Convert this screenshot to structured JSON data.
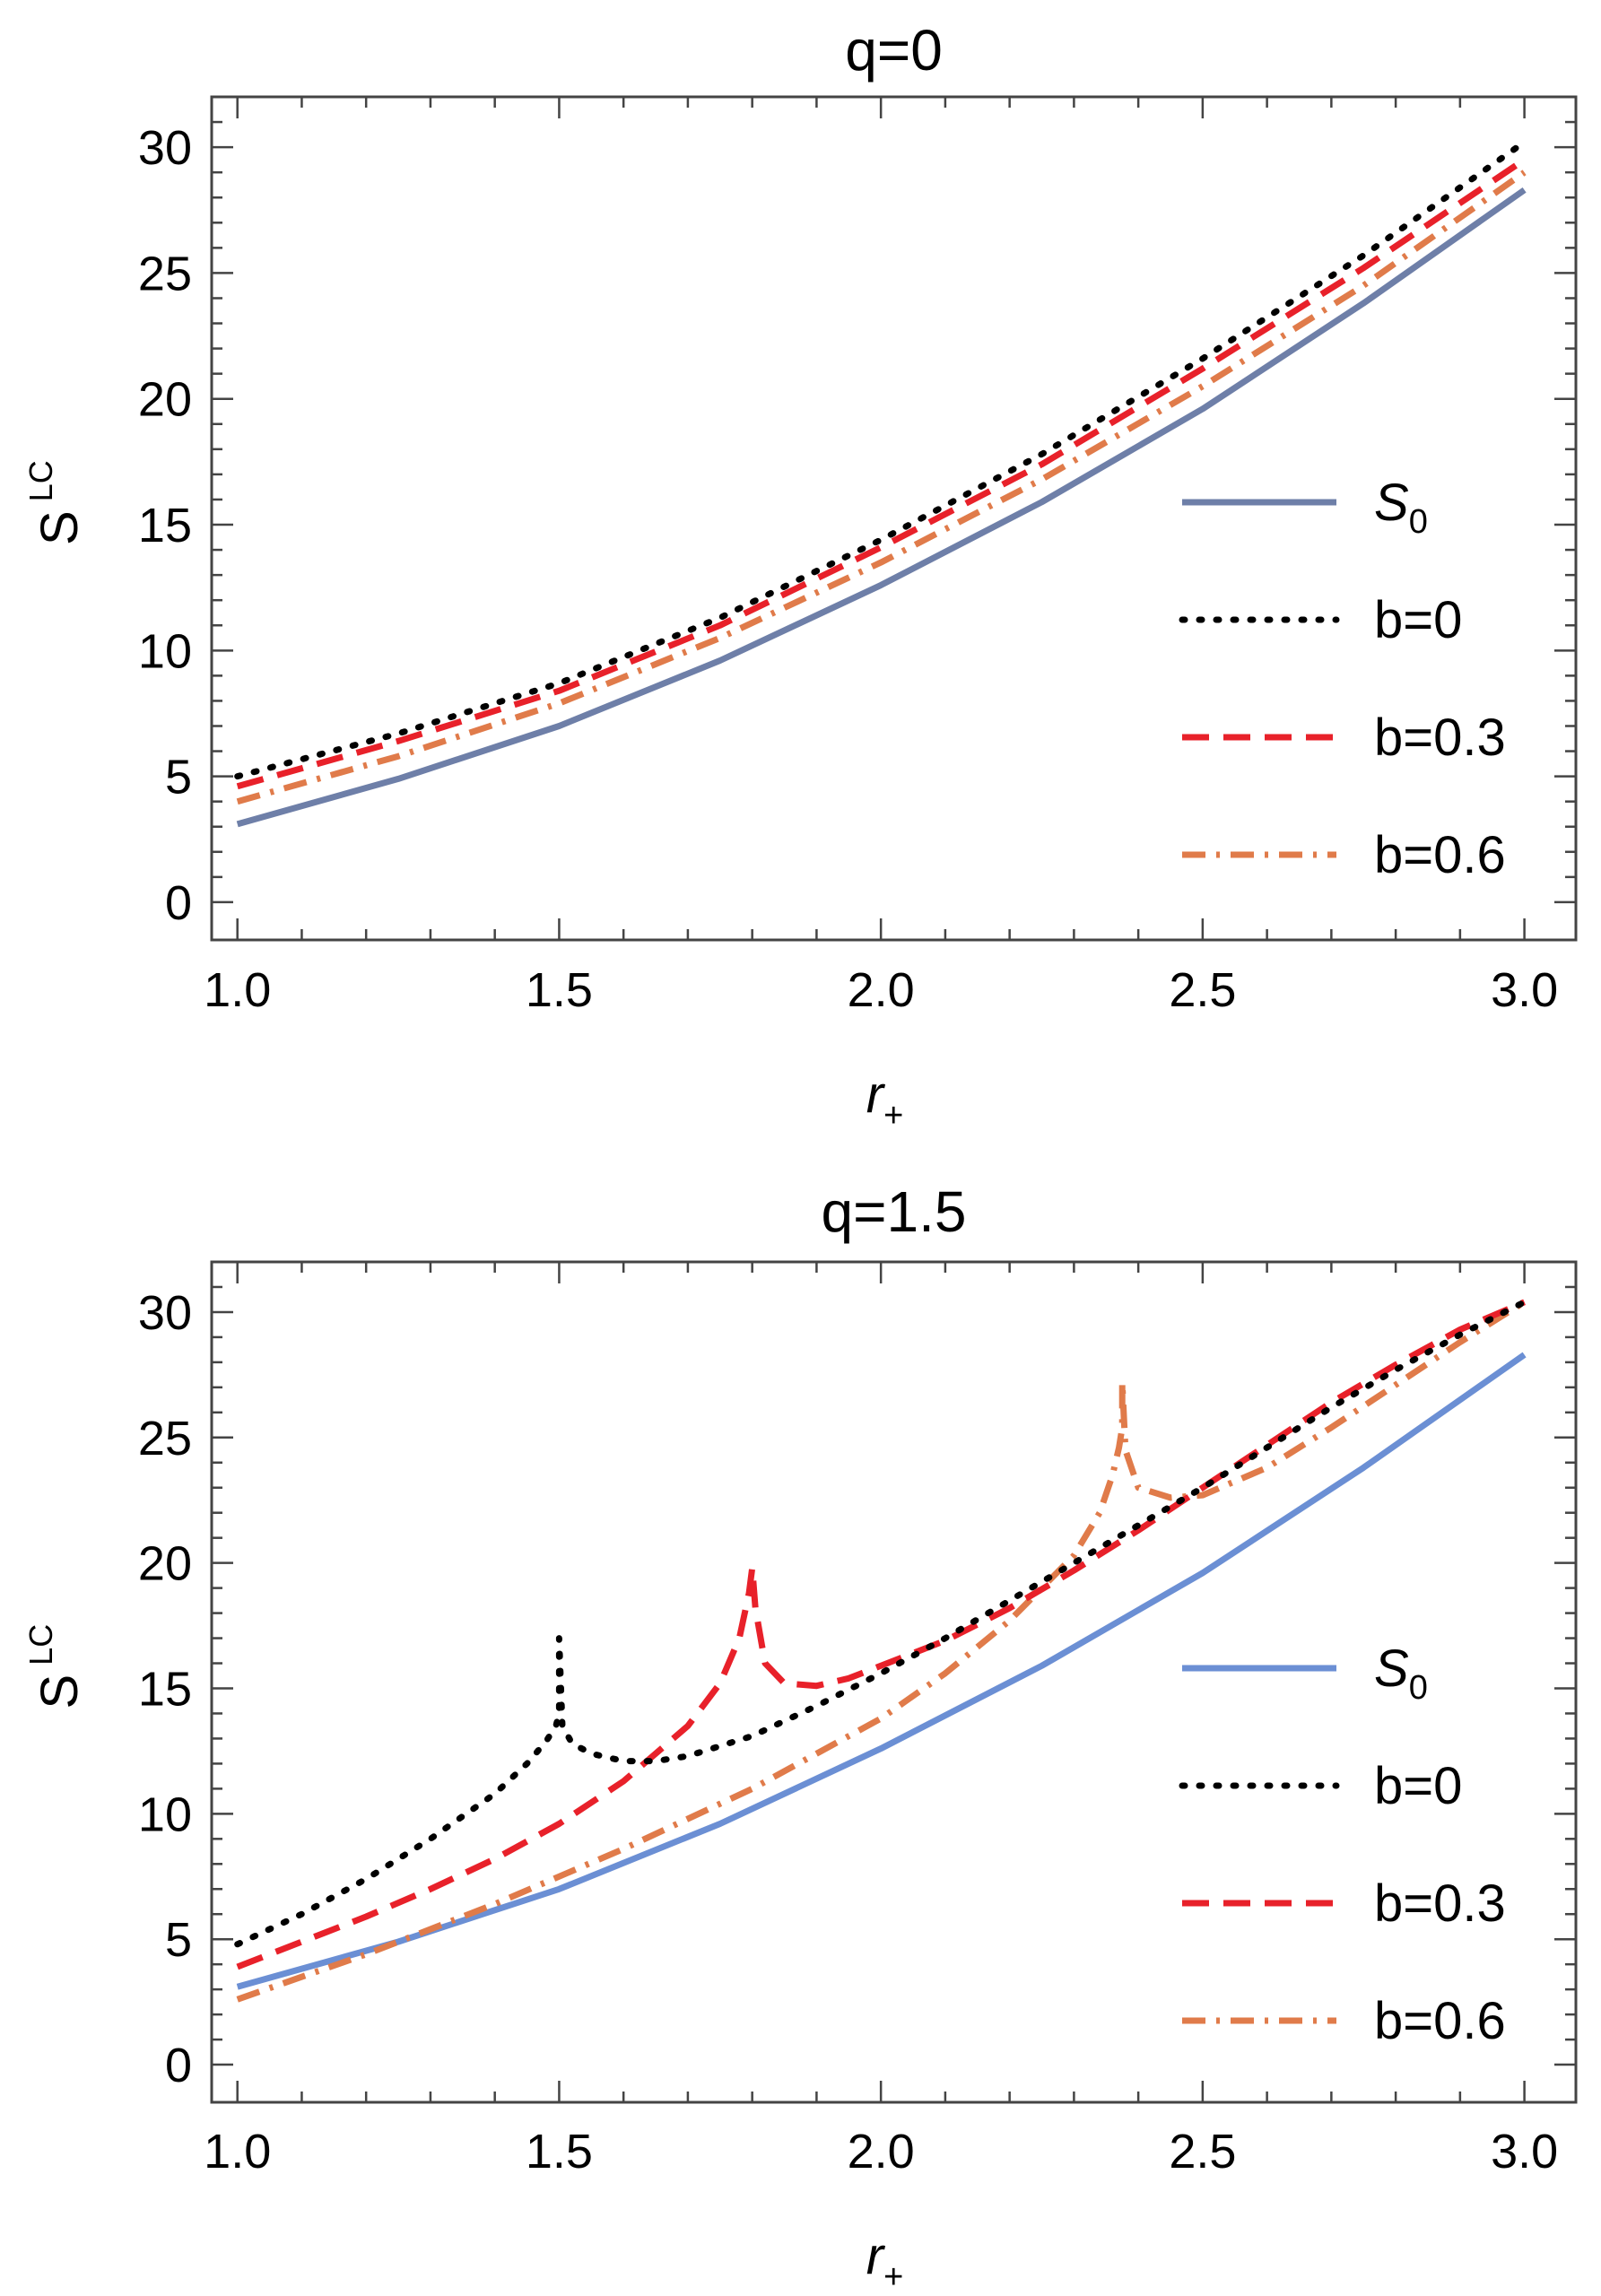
{
  "chart_data": [
    {
      "type": "line",
      "title": "q=0",
      "xlabel": "r",
      "xlabel_sub": "+",
      "ylabel": "S",
      "ylabel_sup": "LC",
      "xlim": [
        0.96,
        3.08
      ],
      "ylim": [
        -1.5,
        32
      ],
      "xticks": [
        "1.0",
        "1.5",
        "2.0",
        "2.5",
        "3.0"
      ],
      "yticks": [
        "0",
        "5",
        "10",
        "15",
        "20",
        "25",
        "30"
      ],
      "legend_position": "right",
      "series": [
        {
          "name": "S",
          "name_sub": "0",
          "style": "solid",
          "color": "#6e7fa8",
          "x": [
            1.0,
            1.25,
            1.5,
            1.75,
            2.0,
            2.25,
            2.5,
            2.75,
            3.0
          ],
          "y": [
            3.1,
            4.9,
            7.0,
            9.6,
            12.6,
            15.9,
            19.6,
            23.8,
            28.3
          ]
        },
        {
          "name": "b=0",
          "style": "dotted",
          "color": "#000000",
          "x": [
            1.0,
            1.25,
            1.5,
            1.75,
            2.0,
            2.25,
            2.5,
            2.75,
            3.0
          ],
          "y": [
            5.0,
            6.7,
            8.7,
            11.3,
            14.4,
            17.8,
            21.6,
            25.7,
            30.2
          ]
        },
        {
          "name": "b=0.3",
          "style": "dashed",
          "color": "#e8212a",
          "x": [
            1.0,
            1.25,
            1.5,
            1.75,
            2.0,
            2.25,
            2.5,
            2.75,
            3.0
          ],
          "y": [
            4.6,
            6.4,
            8.4,
            11.0,
            14.1,
            17.4,
            21.2,
            25.2,
            29.5
          ]
        },
        {
          "name": "b=0.6",
          "style": "dashdot",
          "color": "#e07b4a",
          "x": [
            1.0,
            1.25,
            1.5,
            1.75,
            2.0,
            2.25,
            2.5,
            2.75,
            3.0
          ],
          "y": [
            4.0,
            5.8,
            7.9,
            10.5,
            13.5,
            16.8,
            20.5,
            24.5,
            29.0
          ]
        }
      ]
    },
    {
      "type": "line",
      "title": "q=1.5",
      "xlabel": "r",
      "xlabel_sub": "+",
      "ylabel": "S",
      "ylabel_sup": "LC",
      "xlim": [
        0.96,
        3.08
      ],
      "ylim": [
        -1.5,
        32
      ],
      "xticks": [
        "1.0",
        "1.5",
        "2.0",
        "2.5",
        "3.0"
      ],
      "yticks": [
        "0",
        "5",
        "10",
        "15",
        "20",
        "25",
        "30"
      ],
      "legend_position": "right",
      "series": [
        {
          "name": "S",
          "name_sub": "0",
          "style": "solid",
          "color": "#6b8fd4",
          "x": [
            1.0,
            1.25,
            1.5,
            1.75,
            2.0,
            2.25,
            2.5,
            2.75,
            3.0
          ],
          "y": [
            3.1,
            4.9,
            7.0,
            9.6,
            12.6,
            15.9,
            19.6,
            23.8,
            28.3
          ]
        },
        {
          "name": "b=0",
          "style": "dotted",
          "color": "#000000",
          "x": [
            1.0,
            1.1,
            1.2,
            1.3,
            1.4,
            1.45,
            1.48,
            1.495,
            1.5,
            1.5,
            1.505,
            1.52,
            1.55,
            1.6,
            1.65,
            1.7,
            1.8,
            1.9,
            2.0,
            2.1,
            2.2,
            2.3,
            2.4,
            2.5,
            2.6,
            2.7,
            2.8,
            2.9,
            3.0
          ],
          "y": [
            4.8,
            6.0,
            7.4,
            9.0,
            10.8,
            12.0,
            12.9,
            13.5,
            14.0,
            17.0,
            13.5,
            12.8,
            12.4,
            12.1,
            12.1,
            12.3,
            13.1,
            14.3,
            15.6,
            17.0,
            18.5,
            20.0,
            21.5,
            23.0,
            24.6,
            26.2,
            27.7,
            29.1,
            30.4
          ]
        },
        {
          "name": "b=0.3",
          "style": "dashed",
          "color": "#e8212a",
          "x": [
            1.0,
            1.1,
            1.2,
            1.3,
            1.4,
            1.5,
            1.6,
            1.7,
            1.75,
            1.78,
            1.795,
            1.8,
            1.805,
            1.82,
            1.85,
            1.9,
            1.95,
            2.0,
            2.1,
            2.2,
            2.3,
            2.4,
            2.5,
            2.6,
            2.7,
            2.8,
            2.9,
            3.0
          ],
          "y": [
            3.9,
            4.9,
            5.9,
            7.0,
            8.2,
            9.6,
            11.3,
            13.5,
            15.2,
            17.0,
            18.8,
            19.8,
            18.2,
            16.0,
            15.2,
            15.1,
            15.4,
            15.9,
            16.9,
            18.2,
            19.7,
            21.3,
            23.0,
            24.7,
            26.4,
            27.9,
            29.3,
            30.4
          ]
        },
        {
          "name": "b=0.6",
          "style": "dashdot",
          "color": "#e07b4a",
          "x": [
            1.0,
            1.2,
            1.4,
            1.6,
            1.8,
            2.0,
            2.1,
            2.2,
            2.3,
            2.34,
            2.36,
            2.37,
            2.375,
            2.375,
            2.38,
            2.4,
            2.45,
            2.5,
            2.6,
            2.7,
            2.8,
            2.9,
            3.0
          ],
          "y": [
            2.6,
            4.4,
            6.4,
            8.6,
            11.0,
            13.8,
            15.6,
            17.7,
            20.3,
            22.0,
            23.5,
            24.6,
            25.4,
            27.2,
            24.5,
            23.0,
            22.6,
            22.7,
            23.8,
            25.4,
            27.1,
            28.8,
            30.4
          ]
        }
      ]
    }
  ]
}
